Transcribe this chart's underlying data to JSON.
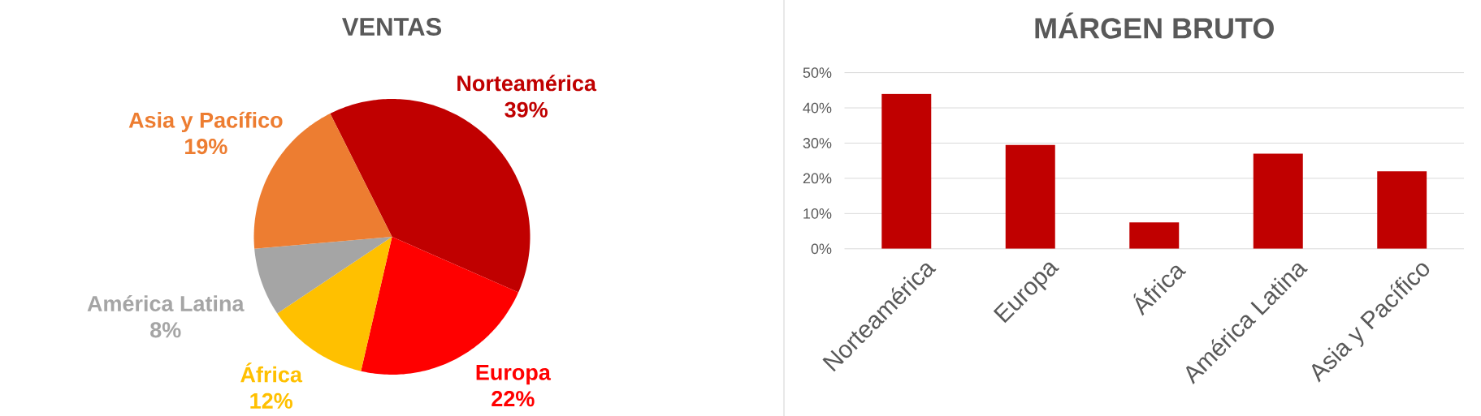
{
  "chart_data": [
    {
      "type": "pie",
      "title": "VENTAS",
      "categories": [
        "Norteamérica",
        "Europa",
        "África",
        "América Latina",
        "Asia y Pacífico"
      ],
      "values": [
        39,
        22,
        12,
        8,
        19
      ],
      "colors": [
        "#c00000",
        "#ff0000",
        "#ffc000",
        "#a5a5a5",
        "#ed7d31"
      ],
      "value_labels": [
        "39%",
        "22%",
        "12%",
        "8%",
        "19%"
      ]
    },
    {
      "type": "bar",
      "title": "MÁRGEN BRUTO",
      "categories": [
        "Norteamérica",
        "Europa",
        "África",
        "América Latina",
        "Asia y Pacífico"
      ],
      "values": [
        44,
        29.5,
        7.5,
        27,
        22
      ],
      "color": "#c00000",
      "ylim": [
        0,
        50
      ],
      "yticks": [
        {
          "value": 0,
          "label": "0%"
        },
        {
          "value": 10,
          "label": "10%"
        },
        {
          "value": 20,
          "label": "20%"
        },
        {
          "value": 30,
          "label": "30%"
        },
        {
          "value": 40,
          "label": "40%"
        },
        {
          "value": 50,
          "label": "50%"
        }
      ],
      "grid": "y"
    }
  ]
}
